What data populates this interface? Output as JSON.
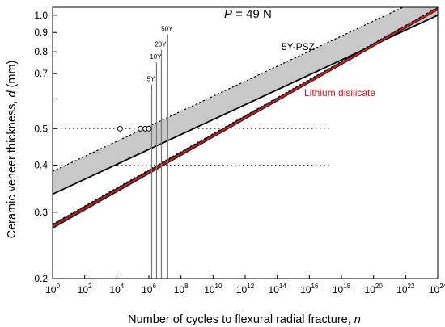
{
  "chart_data": {
    "type": "line",
    "annotation_title": {
      "symbol": "P",
      "rest": " = 49 N"
    },
    "xlabel": {
      "text": "Number of cycles to flexural radial fracture, ",
      "symbol": "n"
    },
    "ylabel": {
      "text": "Ceramic veneer thickness, ",
      "symbol": "d",
      "unit": " (mm)"
    },
    "x_scale": "log",
    "y_scale": "log",
    "xlim": [
      1,
      1e+24
    ],
    "ylim": [
      0.2,
      1.05
    ],
    "x_ticks": [
      {
        "value": 1,
        "base": "10",
        "exp": "0"
      },
      {
        "value": 100,
        "base": "10",
        "exp": "2"
      },
      {
        "value": 10000,
        "base": "10",
        "exp": "4"
      },
      {
        "value": 1000000,
        "base": "10",
        "exp": "6"
      },
      {
        "value": 100000000,
        "base": "10",
        "exp": "8"
      },
      {
        "value": 10000000000.0,
        "base": "10",
        "exp": "10"
      },
      {
        "value": 1000000000000.0,
        "base": "10",
        "exp": "12"
      },
      {
        "value": 100000000000000.0,
        "base": "10",
        "exp": "14"
      },
      {
        "value": 1e+16,
        "base": "10",
        "exp": "16"
      },
      {
        "value": 1e+18,
        "base": "10",
        "exp": "18"
      },
      {
        "value": 1e+20,
        "base": "10",
        "exp": "20"
      },
      {
        "value": 1e+22,
        "base": "10",
        "exp": "22"
      },
      {
        "value": 1e+24,
        "base": "10",
        "exp": "24"
      }
    ],
    "y_ticks": [
      {
        "value": 0.2,
        "label": "0.2"
      },
      {
        "value": 0.3,
        "label": "0.3"
      },
      {
        "value": 0.4,
        "label": "0.4"
      },
      {
        "value": 0.5,
        "label": "0.5"
      },
      {
        "value": 0.7,
        "label": "0.7"
      },
      {
        "value": 0.8,
        "label": "0.8"
      },
      {
        "value": 0.9,
        "label": "0.9"
      },
      {
        "value": 1.0,
        "label": "1.0"
      }
    ],
    "y_minor_ticks": [
      0.6
    ],
    "series": [
      {
        "name": "5Y-PSZ",
        "color": "#000000",
        "points": [
          [
            1,
            0.335
          ],
          [
            1e+24,
            1.0
          ]
        ],
        "band": {
          "upper": [
            [
              1,
              0.385
            ],
            [
              1e+24,
              1.16
            ]
          ],
          "lower": [
            [
              1,
              0.335
            ],
            [
              1e+24,
              1.0
            ]
          ],
          "color": "#c8c8c8",
          "upper_dashed": true
        }
      },
      {
        "name": "Lithium disilicate",
        "color": "#e8141c",
        "points": [
          [
            1,
            0.275
          ],
          [
            1e+24,
            1.04
          ]
        ],
        "band": {
          "upper": [
            [
              1,
              0.279
            ],
            [
              1e+24,
              1.05
            ]
          ],
          "lower": [
            [
              1,
              0.271
            ],
            [
              1e+24,
              1.03
            ]
          ],
          "color": "#000000",
          "upper_dashed": true
        }
      }
    ],
    "reference_lines": [
      {
        "y": 0.5,
        "style": "dotted"
      },
      {
        "y": 0.4,
        "style": "dotted"
      }
    ],
    "lifetime_markers": [
      {
        "label": "5Y",
        "x": 1500000,
        "y_top": 0.655
      },
      {
        "label": "10Y",
        "x": 3000000,
        "y_top": 0.75
      },
      {
        "label": "20Y",
        "x": 6000000,
        "y_top": 0.81
      },
      {
        "label": "50Y",
        "x": 15000000,
        "y_top": 0.89
      }
    ],
    "data_points": [
      {
        "x": 16000,
        "y": 0.5
      },
      {
        "x": 300000,
        "y": 0.5
      },
      {
        "x": 600000,
        "y": 0.5
      },
      {
        "x": 1000000,
        "y": 0.5
      }
    ]
  }
}
